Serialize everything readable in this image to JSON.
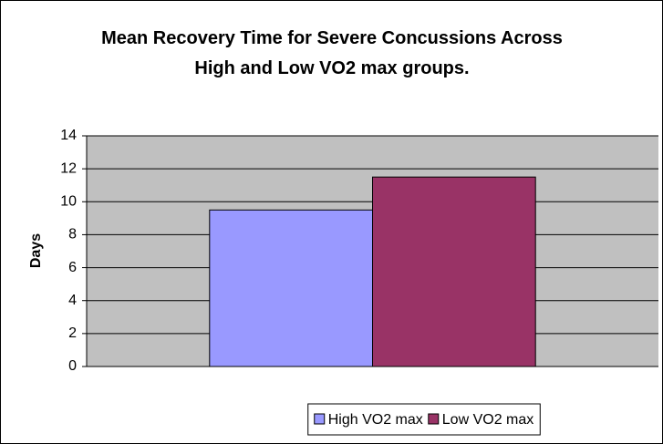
{
  "chart_data": {
    "type": "bar",
    "title": "Mean Recovery Time for Severe Concussions Across High and Low VO2 max groups.",
    "y_label": "Days",
    "categories": [
      null
    ],
    "series": [
      {
        "name": "High VO2 max",
        "color": "#9999ff",
        "values": [
          9.5
        ]
      },
      {
        "name": "Low VO2 max",
        "color": "#993366",
        "values": [
          11.5
        ]
      }
    ],
    "ylim": [
      0,
      14
    ],
    "yticks": [
      0,
      2,
      4,
      6,
      8,
      10,
      12,
      14
    ],
    "grid": true,
    "legend": "bottom"
  }
}
